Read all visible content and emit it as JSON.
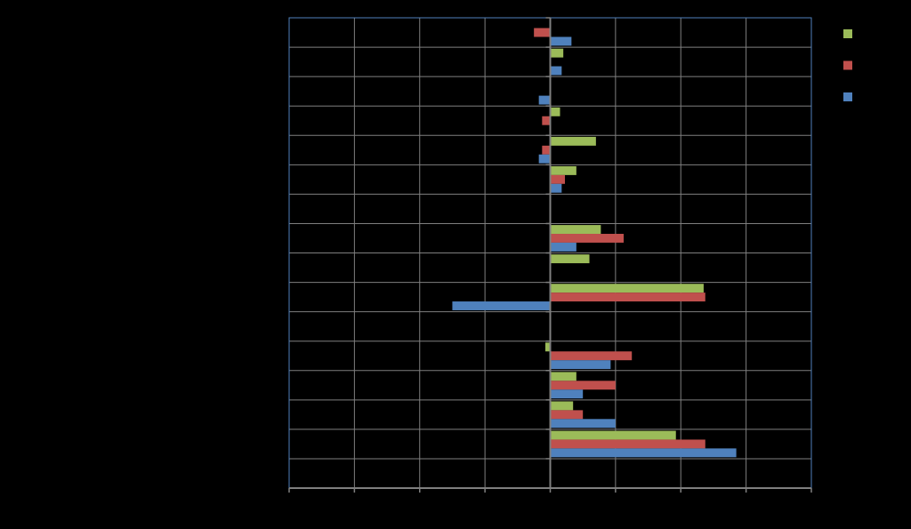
{
  "chart_data": {
    "type": "bar",
    "orientation": "horizontal",
    "title": "",
    "xlabel": "",
    "ylabel": "",
    "xlim": [
      -8,
      8
    ],
    "x_tick_step": 2,
    "category_count": 16,
    "grid": true,
    "legend_position": "right",
    "categories": [
      "",
      "",
      "",
      "",
      "",
      "",
      "",
      "",
      "",
      "",
      "",
      "",
      "",
      "",
      "",
      ""
    ],
    "series": [
      {
        "color": "#9bbb59",
        "values": [
          null,
          0.4,
          null,
          0.3,
          1.4,
          0.8,
          null,
          1.55,
          1.2,
          4.7,
          null,
          -0.15,
          0.8,
          0.7,
          3.85,
          null
        ]
      },
      {
        "color": "#c0504d",
        "values": [
          -0.5,
          null,
          null,
          -0.25,
          -0.25,
          0.45,
          null,
          2.25,
          null,
          4.75,
          null,
          2.5,
          2.0,
          1.0,
          4.75,
          null
        ]
      },
      {
        "color": "#4f81bd",
        "values": [
          0.65,
          0.35,
          -0.35,
          null,
          -0.35,
          0.35,
          null,
          0.8,
          null,
          -3.0,
          null,
          1.85,
          1.0,
          2.0,
          5.7,
          null
        ]
      }
    ]
  }
}
